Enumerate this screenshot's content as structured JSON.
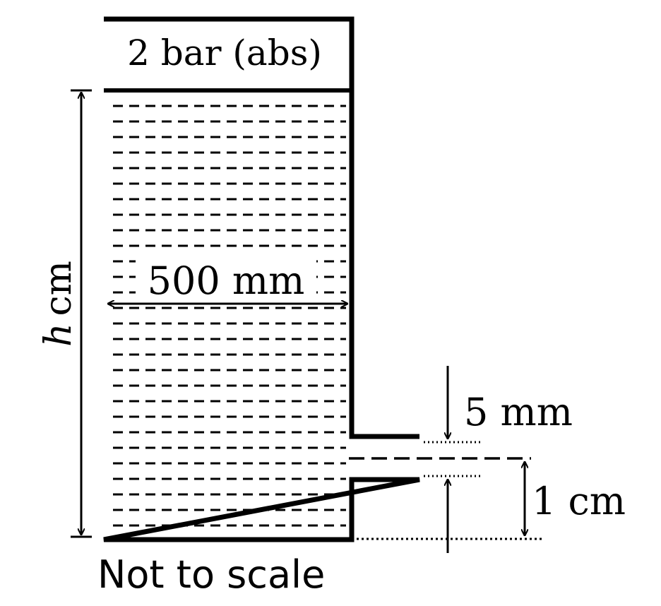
{
  "labels": {
    "gas_pressure": "2 bar (abs)",
    "height": "h cm",
    "height_var": "h",
    "height_unit": "cm",
    "tank_width": "500 mm",
    "pipe_diameter": "5 mm",
    "pipe_elevation": "1 cm",
    "note": "Not to scale"
  },
  "colors": {
    "ink": "#000000",
    "background": "#ffffff"
  }
}
